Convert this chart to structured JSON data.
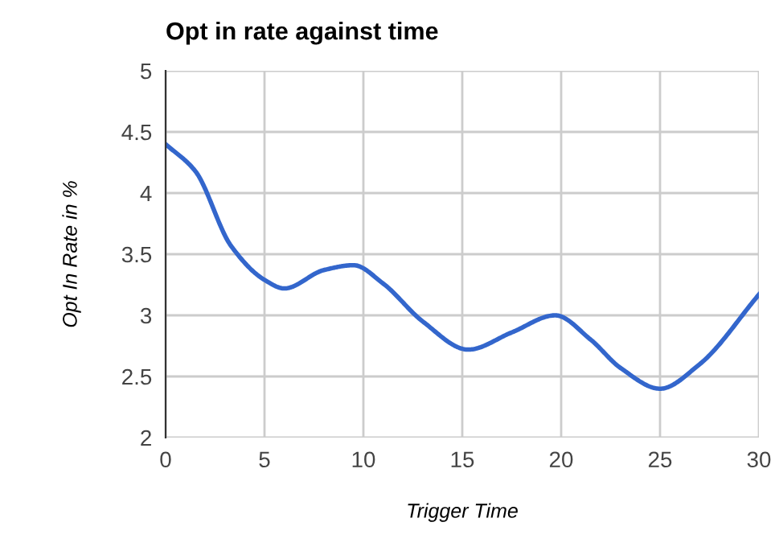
{
  "chart_data": {
    "type": "line",
    "title": "Opt in rate against time",
    "xlabel": "Trigger Time",
    "ylabel": "Opt In Rate in %",
    "series": [
      {
        "color": "#3366cc",
        "x": [
          0,
          1.5,
          3.3,
          5,
          6,
          8,
          9.5,
          11,
          13,
          15.3,
          17.5,
          19.7,
          21.5,
          23,
          25,
          27,
          30
        ],
        "values": [
          4.4,
          4.18,
          3.57,
          3.29,
          3.22,
          3.37,
          3.41,
          3.26,
          2.95,
          2.72,
          2.86,
          3.0,
          2.8,
          2.57,
          2.4,
          2.6,
          3.17
        ]
      }
    ],
    "xlim": [
      0,
      30
    ],
    "xticks": [
      0,
      5,
      10,
      15,
      20,
      25,
      30
    ],
    "ylim": [
      2,
      5
    ],
    "yticks": [
      2,
      2.5,
      3,
      3.5,
      4,
      4.5,
      5
    ],
    "grid": true,
    "marker": "none",
    "line_style": "solid"
  }
}
